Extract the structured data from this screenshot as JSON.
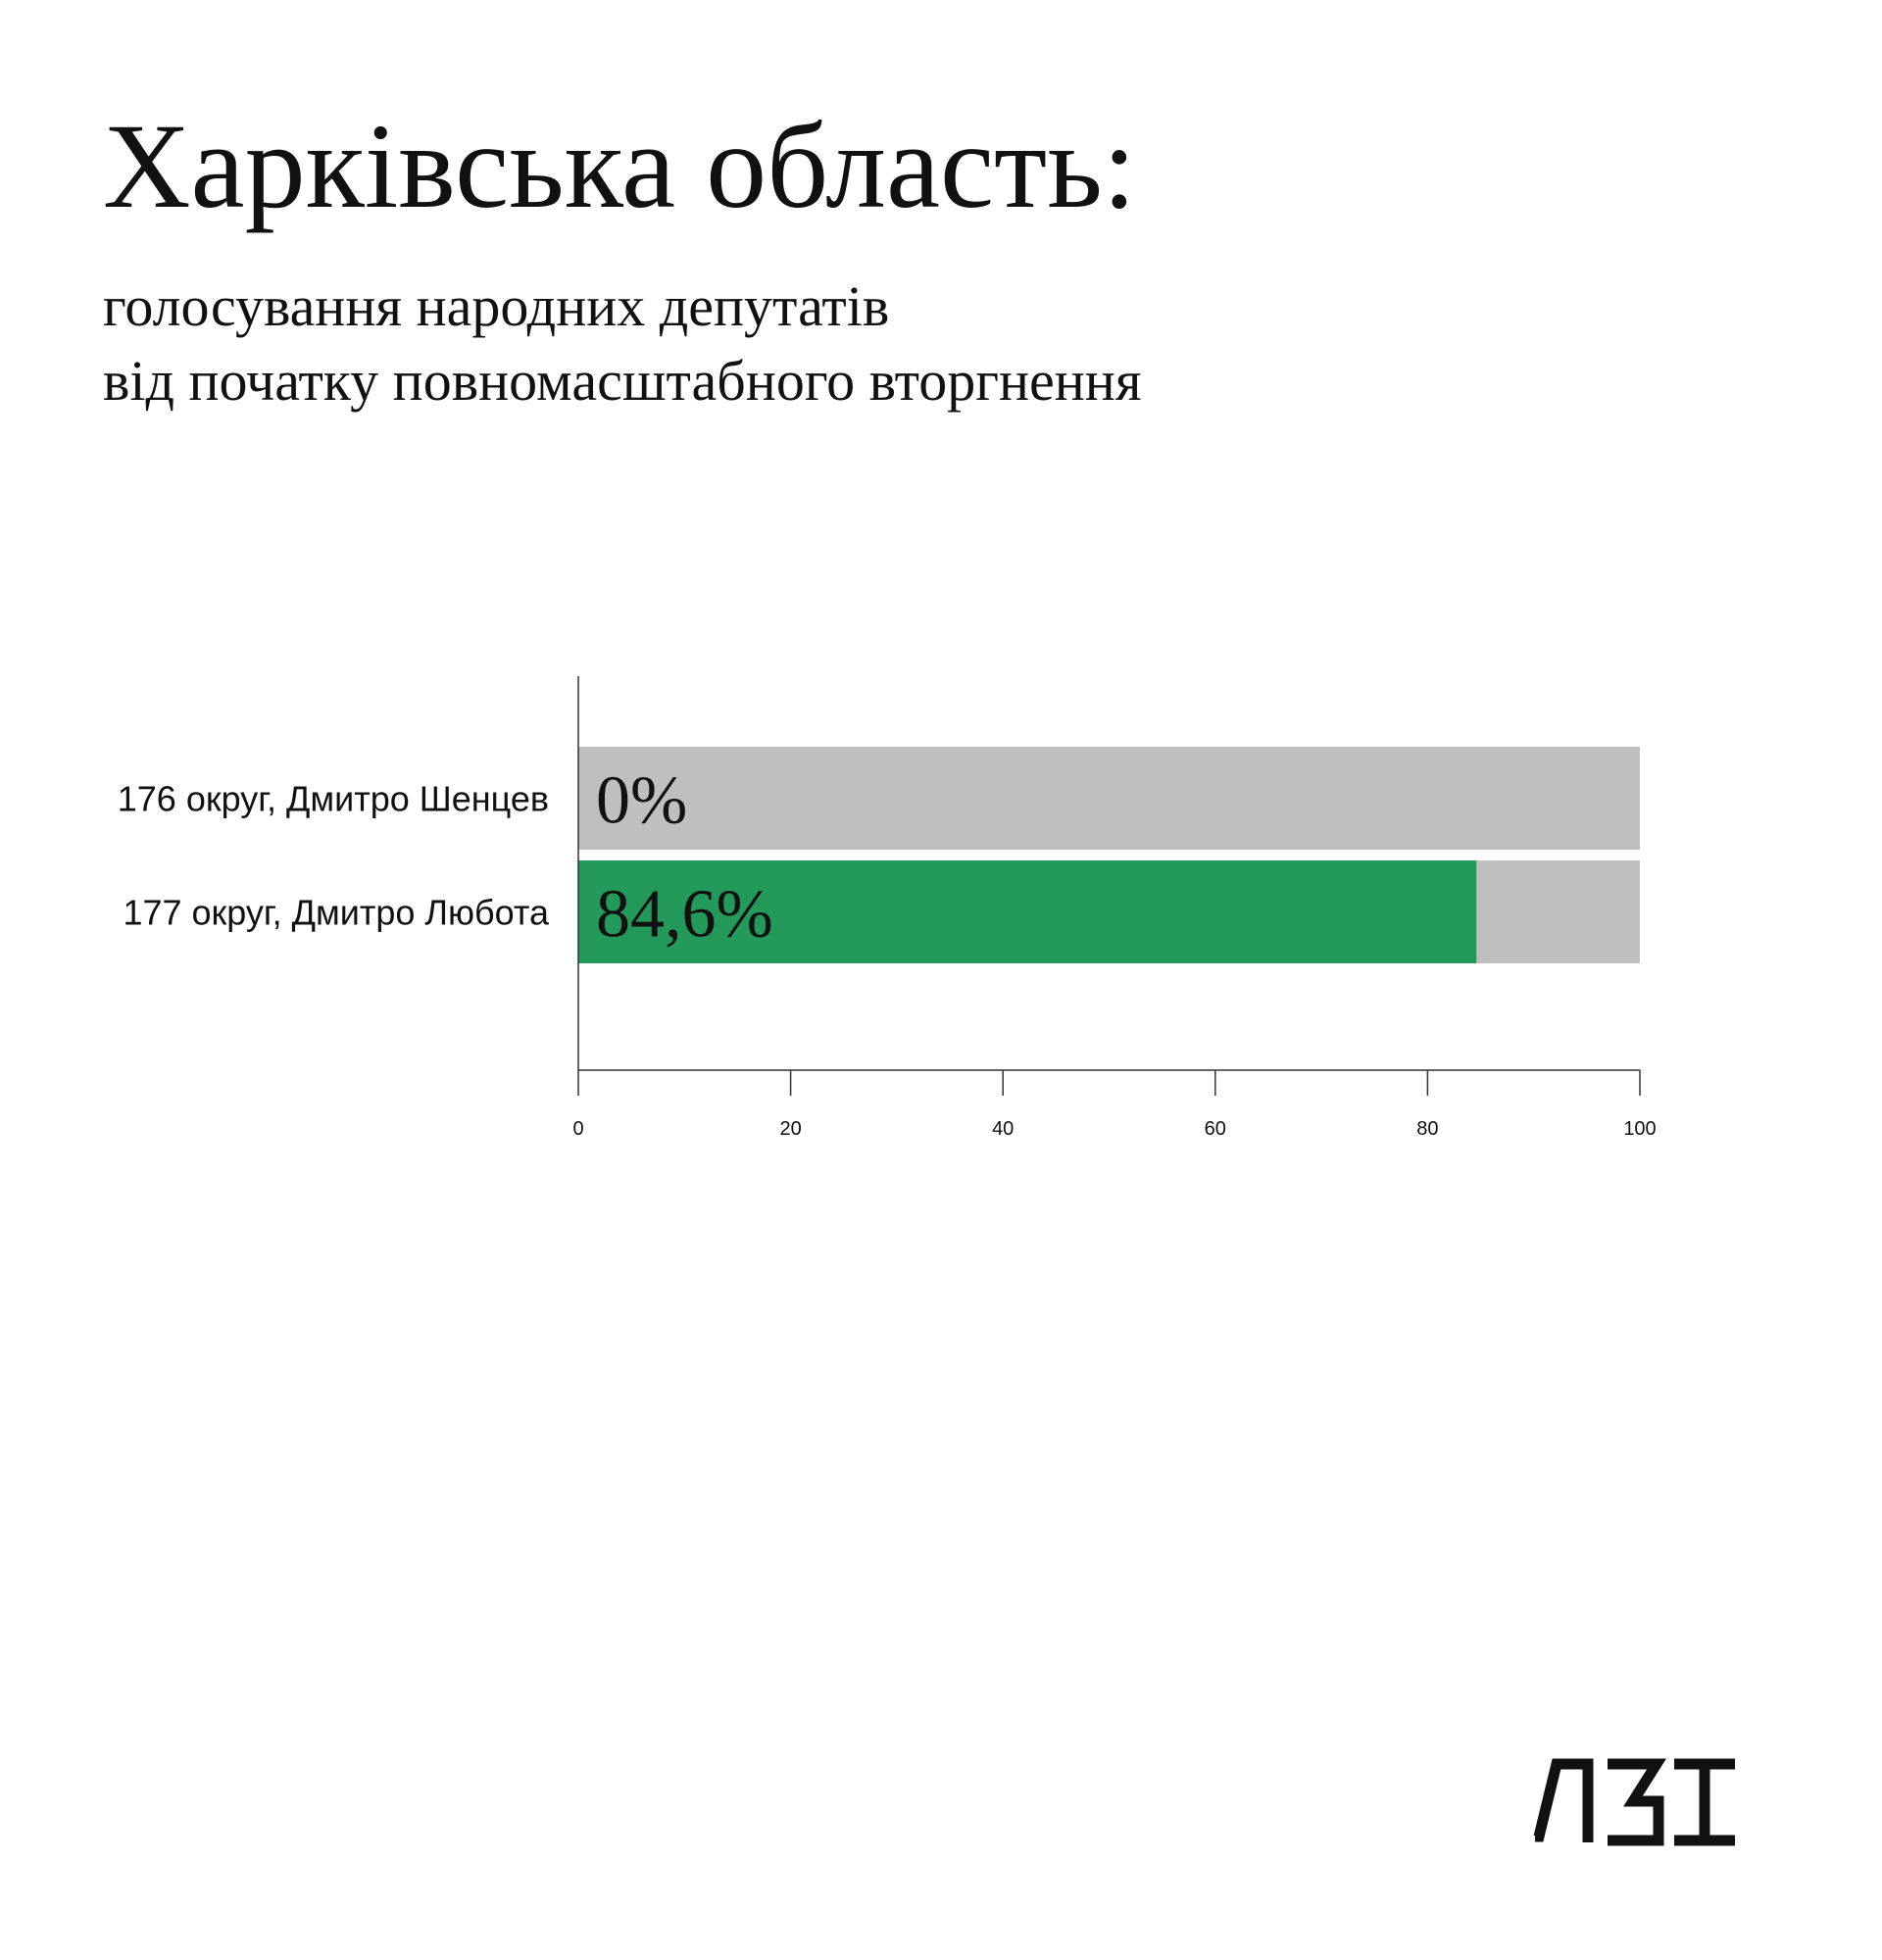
{
  "header": {
    "title": "Харківська область:",
    "subtitle_lines": [
      "голосування народних депутатів",
      "від початку повномасштабного вторгнення"
    ]
  },
  "chart_data": {
    "type": "bar",
    "orientation": "horizontal",
    "categories": [
      "176 округ, Дмитро Шенцев",
      "177 округ, Дмитро Любота"
    ],
    "values": [
      0,
      84.6
    ],
    "value_labels": [
      "0%",
      "84,6%"
    ],
    "xlim": [
      0,
      100
    ],
    "xticks": [
      0,
      20,
      40,
      60,
      80,
      100
    ],
    "title": "",
    "xlabel": "",
    "ylabel": "",
    "colors": {
      "bar": "#239a5a",
      "background_bar": "#bfbfbf",
      "axis": "#333333",
      "text": "#111111"
    }
  },
  "logo": {
    "text": "ЛЗІ",
    "icon": "lzi-logo-icon",
    "color": "#111111"
  }
}
